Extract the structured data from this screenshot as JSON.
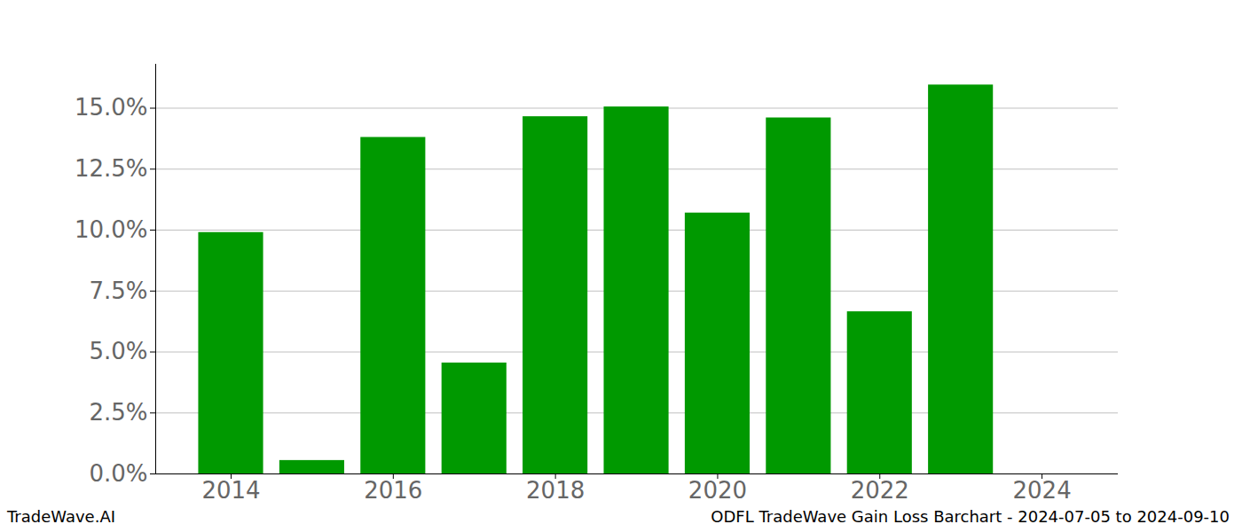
{
  "chart_data": {
    "type": "bar",
    "title": "ODFL TradeWave Gain Loss Barchart - 2024-07-05 to 2024-09-10",
    "source": "TradeWave.AI",
    "x": [
      2014,
      2015,
      2016,
      2017,
      2018,
      2019,
      2020,
      2021,
      2022,
      2023
    ],
    "values": [
      9.9,
      0.55,
      13.8,
      4.55,
      14.65,
      15.05,
      10.7,
      14.6,
      6.65,
      15.95
    ],
    "color": "#009900",
    "xlim": [
      2013.07,
      2024.94
    ],
    "xticks": [
      2014,
      2016,
      2018,
      2020,
      2022,
      2024
    ],
    "ylim": [
      0,
      16.8
    ],
    "yticks": [
      {
        "value": 0,
        "label": "0.0%"
      },
      {
        "value": 2.5,
        "label": "2.5%"
      },
      {
        "value": 5,
        "label": "5.0%"
      },
      {
        "value": 7.5,
        "label": "7.5%"
      },
      {
        "value": 10,
        "label": "10.0%"
      },
      {
        "value": 12.5,
        "label": "12.5%"
      },
      {
        "value": 15,
        "label": "15.0%"
      }
    ],
    "grid": true
  }
}
